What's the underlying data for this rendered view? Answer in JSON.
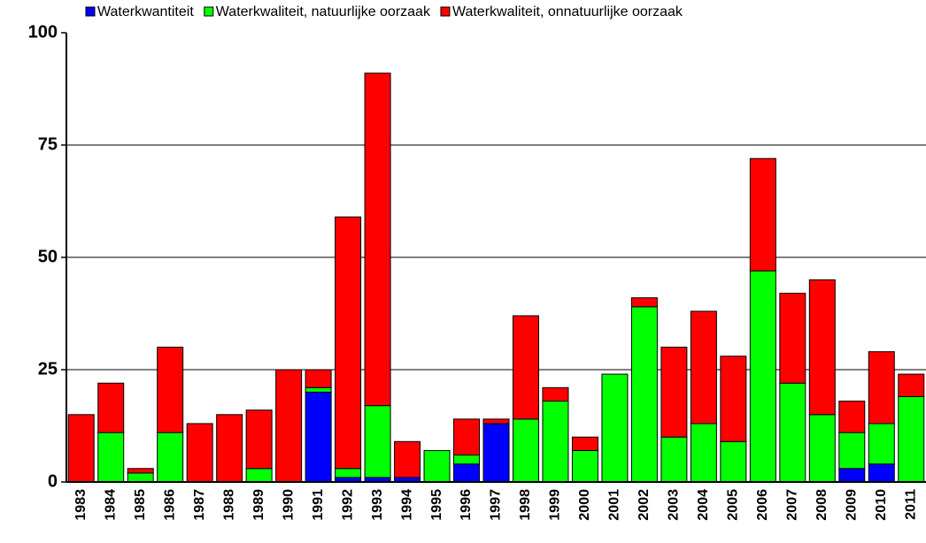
{
  "chart_data": {
    "type": "stacked-bar",
    "categories": [
      "1983",
      "1984",
      "1985",
      "1986",
      "1987",
      "1988",
      "1989",
      "1990",
      "1991",
      "1992",
      "1993",
      "1994",
      "1995",
      "1996",
      "1997",
      "1998",
      "1999",
      "2000",
      "2001",
      "2002",
      "2003",
      "2004",
      "2005",
      "2006",
      "2007",
      "2008",
      "2009",
      "2010",
      "2011"
    ],
    "series": [
      {
        "name": "Waterkwantiteit",
        "color": "#0000ff",
        "values": [
          0,
          0,
          0,
          0,
          0,
          0,
          0,
          0,
          20,
          1,
          1,
          1,
          0,
          4,
          13,
          0,
          0,
          0,
          0,
          0,
          0,
          0,
          0,
          0,
          0,
          0,
          3,
          4,
          0
        ]
      },
      {
        "name": "Waterkwaliteit, natuurlijke oorzaak",
        "color": "#00ff00",
        "values": [
          0,
          11,
          2,
          11,
          0,
          0,
          3,
          0,
          1,
          2,
          16,
          0,
          7,
          2,
          0,
          14,
          18,
          7,
          24,
          39,
          10,
          13,
          9,
          47,
          22,
          15,
          8,
          9,
          19
        ]
      },
      {
        "name": "Waterkwaliteit, onnatuurlijke oorzaak",
        "color": "#ff0000",
        "values": [
          15,
          11,
          1,
          19,
          13,
          15,
          13,
          25,
          4,
          56,
          74,
          8,
          0,
          8,
          1,
          23,
          3,
          3,
          0,
          2,
          20,
          25,
          19,
          25,
          20,
          30,
          7,
          16,
          5
        ]
      }
    ],
    "ylim": [
      0,
      100
    ],
    "yticks": [
      0,
      25,
      50,
      75,
      100
    ],
    "grid": true,
    "legend": "top"
  }
}
